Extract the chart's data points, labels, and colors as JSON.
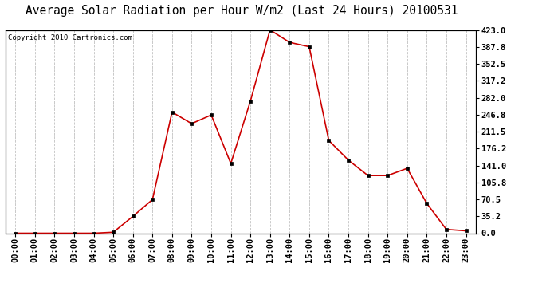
{
  "title": "Average Solar Radiation per Hour W/m2 (Last 24 Hours) 20100531",
  "copyright": "Copyright 2010 Cartronics.com",
  "hours": [
    "00:00",
    "01:00",
    "02:00",
    "03:00",
    "04:00",
    "05:00",
    "06:00",
    "07:00",
    "08:00",
    "09:00",
    "10:00",
    "11:00",
    "12:00",
    "13:00",
    "14:00",
    "15:00",
    "16:00",
    "17:00",
    "18:00",
    "19:00",
    "20:00",
    "21:00",
    "22:00",
    "23:00"
  ],
  "values": [
    0.0,
    0.0,
    0.0,
    0.0,
    0.0,
    2.0,
    35.0,
    70.0,
    252.0,
    228.0,
    246.0,
    145.0,
    275.0,
    423.0,
    397.0,
    388.0,
    193.0,
    152.0,
    120.0,
    120.0,
    135.0,
    62.0,
    8.0,
    5.0
  ],
  "ymax": 423.0,
  "yticks": [
    0.0,
    35.2,
    70.5,
    105.8,
    141.0,
    176.2,
    211.5,
    246.8,
    282.0,
    317.2,
    352.5,
    387.8,
    423.0
  ],
  "line_color": "#cc0000",
  "marker_color": "#000000",
  "grid_color": "#c0c0c0",
  "bg_color": "#ffffff",
  "title_fontsize": 10.5,
  "copyright_fontsize": 6.5,
  "tick_fontsize": 7.5,
  "ytick_fontsize": 7.5
}
